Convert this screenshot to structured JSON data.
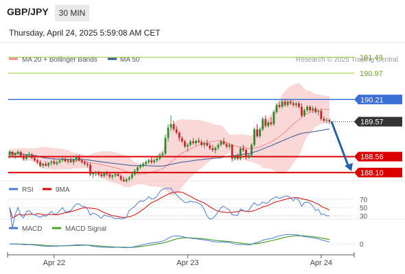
{
  "header": {
    "symbol": "GBP/JPY",
    "timeframe": "30 MIN",
    "datetime": "Thursday, April 24, 2025 5:59:08 AM CET"
  },
  "colors": {
    "candle_up": "#2b8a2b",
    "candle_down": "#c62828",
    "ma20": "#f28b8b",
    "bollinger_fill": "#f9c7c7",
    "ma50": "#2f5597",
    "green_level": "#9acd32",
    "resistance_blue": "#3a6fd8",
    "support_red": "#dd0000",
    "rsi": "#4a78d6",
    "rsi_ma": "#dd0000",
    "macd": "#4a78d6",
    "macd_signal": "#4aa02c",
    "arrow": "#2461a8"
  },
  "chart_data": [
    {
      "type": "candlestick",
      "panel": "price",
      "legend": [
        {
          "name": "MA 20 + Bollinger Bands",
          "color": "#f28b8b"
        },
        {
          "name": "MA 50",
          "color": "#2f5597"
        }
      ],
      "source": "Research © 2025 Trading Central",
      "ylim": [
        187.9,
        191.7
      ],
      "levels": [
        {
          "label": "191.43",
          "value": 191.43,
          "style": "green"
        },
        {
          "label": "190.97",
          "value": 190.97,
          "style": "green"
        },
        {
          "label": "190.21",
          "value": 190.21,
          "style": "blue"
        },
        {
          "label": "189.57",
          "value": 189.57,
          "style": "current"
        },
        {
          "label": "188.56",
          "value": 188.56,
          "style": "red"
        },
        {
          "label": "188.10",
          "value": 188.1,
          "style": "red"
        }
      ],
      "x_labels": [
        {
          "label": "Apr 22",
          "index": 16
        },
        {
          "label": "Apr 23",
          "index": 64
        },
        {
          "label": "Apr 24",
          "index": 112
        }
      ],
      "candles": [
        [
          188.6,
          188.75,
          188.5,
          188.7
        ],
        [
          188.7,
          188.72,
          188.55,
          188.6
        ],
        [
          188.6,
          188.68,
          188.5,
          188.65
        ],
        [
          188.65,
          188.75,
          188.6,
          188.7
        ],
        [
          188.7,
          188.72,
          188.55,
          188.58
        ],
        [
          188.58,
          188.65,
          188.45,
          188.5
        ],
        [
          188.5,
          188.62,
          188.45,
          188.6
        ],
        [
          188.6,
          188.7,
          188.55,
          188.62
        ],
        [
          188.62,
          188.66,
          188.5,
          188.52
        ],
        [
          188.52,
          188.58,
          188.42,
          188.45
        ],
        [
          188.45,
          188.5,
          188.35,
          188.4
        ],
        [
          188.4,
          188.45,
          188.25,
          188.3
        ],
        [
          188.3,
          188.38,
          188.22,
          188.35
        ],
        [
          188.35,
          188.42,
          188.28,
          188.3
        ],
        [
          188.3,
          188.4,
          188.25,
          188.38
        ],
        [
          188.38,
          188.45,
          188.3,
          188.42
        ],
        [
          188.42,
          188.48,
          188.32,
          188.35
        ],
        [
          188.35,
          188.45,
          188.3,
          188.4
        ],
        [
          188.4,
          188.48,
          188.35,
          188.45
        ],
        [
          188.45,
          188.55,
          188.4,
          188.5
        ],
        [
          188.5,
          188.58,
          188.4,
          188.42
        ],
        [
          188.42,
          188.5,
          188.35,
          188.45
        ],
        [
          188.45,
          188.52,
          188.38,
          188.4
        ],
        [
          188.4,
          188.5,
          188.32,
          188.47
        ],
        [
          188.47,
          188.6,
          188.4,
          188.55
        ],
        [
          188.55,
          188.62,
          188.42,
          188.45
        ],
        [
          188.45,
          188.5,
          188.35,
          188.4
        ],
        [
          188.4,
          188.45,
          188.3,
          188.35
        ],
        [
          188.35,
          188.4,
          188.25,
          188.32
        ],
        [
          188.32,
          188.38,
          188.0,
          188.05
        ],
        [
          188.05,
          188.12,
          187.95,
          188.08
        ],
        [
          188.08,
          188.15,
          188.0,
          188.1
        ],
        [
          188.1,
          188.15,
          188.0,
          188.05
        ],
        [
          188.05,
          188.12,
          187.95,
          188.0
        ],
        [
          188.0,
          188.1,
          187.96,
          188.08
        ],
        [
          188.08,
          188.15,
          188.0,
          188.05
        ],
        [
          188.05,
          188.1,
          187.92,
          187.98
        ],
        [
          187.98,
          188.05,
          187.9,
          188.02
        ],
        [
          188.02,
          188.1,
          187.95,
          188.06
        ],
        [
          188.06,
          188.12,
          187.98,
          188.0
        ],
        [
          188.0,
          188.05,
          187.85,
          187.9
        ],
        [
          187.9,
          187.98,
          187.82,
          187.85
        ],
        [
          187.85,
          187.95,
          187.8,
          187.9
        ],
        [
          187.9,
          188.0,
          187.85,
          187.95
        ],
        [
          187.95,
          188.1,
          187.9,
          188.05
        ],
        [
          188.05,
          188.2,
          188.0,
          188.15
        ],
        [
          188.15,
          188.3,
          188.1,
          188.25
        ],
        [
          188.25,
          188.35,
          188.2,
          188.3
        ],
        [
          188.3,
          188.4,
          188.25,
          188.35
        ],
        [
          188.35,
          188.45,
          188.3,
          188.4
        ],
        [
          188.4,
          188.5,
          188.35,
          188.45
        ],
        [
          188.45,
          188.55,
          188.35,
          188.4
        ],
        [
          188.4,
          188.5,
          188.35,
          188.45
        ],
        [
          188.45,
          188.55,
          188.4,
          188.5
        ],
        [
          188.5,
          188.65,
          188.45,
          188.6
        ],
        [
          188.6,
          188.7,
          188.55,
          188.65
        ],
        [
          188.65,
          189.2,
          188.6,
          189.1
        ],
        [
          189.1,
          189.5,
          189.0,
          189.4
        ],
        [
          189.4,
          189.75,
          189.3,
          189.5
        ],
        [
          189.5,
          189.6,
          189.3,
          189.35
        ],
        [
          189.35,
          189.45,
          189.2,
          189.25
        ],
        [
          189.25,
          189.3,
          189.0,
          189.1
        ],
        [
          189.1,
          189.15,
          188.95,
          189.0
        ],
        [
          189.0,
          189.05,
          188.8,
          188.85
        ],
        [
          188.85,
          188.95,
          188.7,
          188.9
        ],
        [
          188.9,
          189.05,
          188.85,
          189.0
        ],
        [
          189.0,
          189.1,
          188.9,
          188.95
        ],
        [
          188.95,
          189.05,
          188.88,
          189.02
        ],
        [
          189.02,
          189.1,
          188.95,
          188.98
        ],
        [
          188.98,
          189.05,
          188.85,
          188.9
        ],
        [
          188.9,
          189.0,
          188.8,
          188.95
        ],
        [
          188.95,
          189.05,
          188.85,
          188.88
        ],
        [
          188.88,
          188.95,
          188.75,
          188.8
        ],
        [
          188.8,
          188.9,
          188.7,
          188.75
        ],
        [
          188.75,
          188.85,
          188.65,
          188.82
        ],
        [
          188.82,
          188.95,
          188.75,
          188.9
        ],
        [
          188.9,
          189.05,
          188.85,
          189.0
        ],
        [
          189.0,
          189.1,
          188.9,
          188.92
        ],
        [
          188.92,
          188.98,
          188.8,
          188.85
        ],
        [
          188.85,
          188.95,
          188.78,
          188.9
        ],
        [
          188.9,
          188.92,
          188.42,
          188.5
        ],
        [
          188.5,
          188.6,
          188.45,
          188.55
        ],
        [
          188.55,
          188.65,
          188.45,
          188.5
        ],
        [
          188.5,
          188.85,
          188.45,
          188.8
        ],
        [
          188.8,
          188.9,
          188.7,
          188.75
        ],
        [
          188.75,
          188.8,
          188.48,
          188.55
        ],
        [
          188.55,
          188.65,
          188.5,
          188.6
        ],
        [
          188.6,
          188.95,
          188.55,
          188.9
        ],
        [
          188.9,
          189.4,
          188.85,
          189.35
        ],
        [
          189.35,
          189.5,
          189.1,
          189.15
        ],
        [
          189.15,
          189.4,
          189.1,
          189.35
        ],
        [
          189.35,
          189.7,
          189.3,
          189.65
        ],
        [
          189.65,
          189.75,
          189.4,
          189.45
        ],
        [
          189.45,
          189.6,
          189.4,
          189.55
        ],
        [
          189.55,
          189.7,
          189.45,
          189.5
        ],
        [
          189.5,
          189.9,
          189.45,
          189.85
        ],
        [
          189.85,
          190.1,
          189.8,
          190.05
        ],
        [
          190.05,
          190.15,
          189.95,
          190.0
        ],
        [
          190.0,
          190.2,
          189.95,
          190.15
        ],
        [
          190.15,
          190.22,
          190.0,
          190.05
        ],
        [
          190.05,
          190.2,
          190.0,
          190.15
        ],
        [
          190.15,
          190.22,
          190.05,
          190.1
        ],
        [
          190.1,
          190.18,
          190.0,
          190.05
        ],
        [
          190.05,
          190.15,
          189.98,
          190.1
        ],
        [
          190.1,
          190.15,
          189.95,
          190.0
        ],
        [
          190.0,
          190.1,
          189.7,
          189.75
        ],
        [
          189.75,
          189.95,
          189.7,
          189.9
        ],
        [
          189.9,
          190.05,
          189.85,
          190.0
        ],
        [
          190.0,
          190.05,
          189.85,
          189.9
        ],
        [
          189.9,
          190.02,
          189.82,
          189.95
        ],
        [
          189.95,
          190.0,
          189.8,
          189.85
        ],
        [
          189.85,
          189.92,
          189.75,
          189.88
        ],
        [
          189.88,
          189.95,
          189.6,
          189.65
        ],
        [
          189.65,
          189.72,
          189.55,
          189.6
        ],
        [
          189.6,
          189.68,
          189.52,
          189.62
        ],
        [
          189.62,
          189.66,
          189.5,
          189.57
        ]
      ]
    },
    {
      "type": "line",
      "panel": "rsi",
      "series": [
        {
          "name": "RSI",
          "color": "#4a78d6"
        },
        {
          "name": "9MA",
          "color": "#dd0000"
        }
      ],
      "ylim": [
        25,
        75
      ],
      "y_ticks": [
        {
          "label": "70",
          "value": 70
        },
        {
          "label": "50",
          "value": 50
        },
        {
          "label": "30",
          "value": 30
        }
      ]
    },
    {
      "type": "line",
      "panel": "macd",
      "series": [
        {
          "name": "MACD",
          "color": "#4a78d6"
        },
        {
          "name": "MACD Signal",
          "color": "#4aa02c"
        }
      ],
      "ylim": [
        -0.35,
        0.35
      ],
      "y_ticks": [
        {
          "label": "0",
          "value": 0
        }
      ]
    }
  ]
}
